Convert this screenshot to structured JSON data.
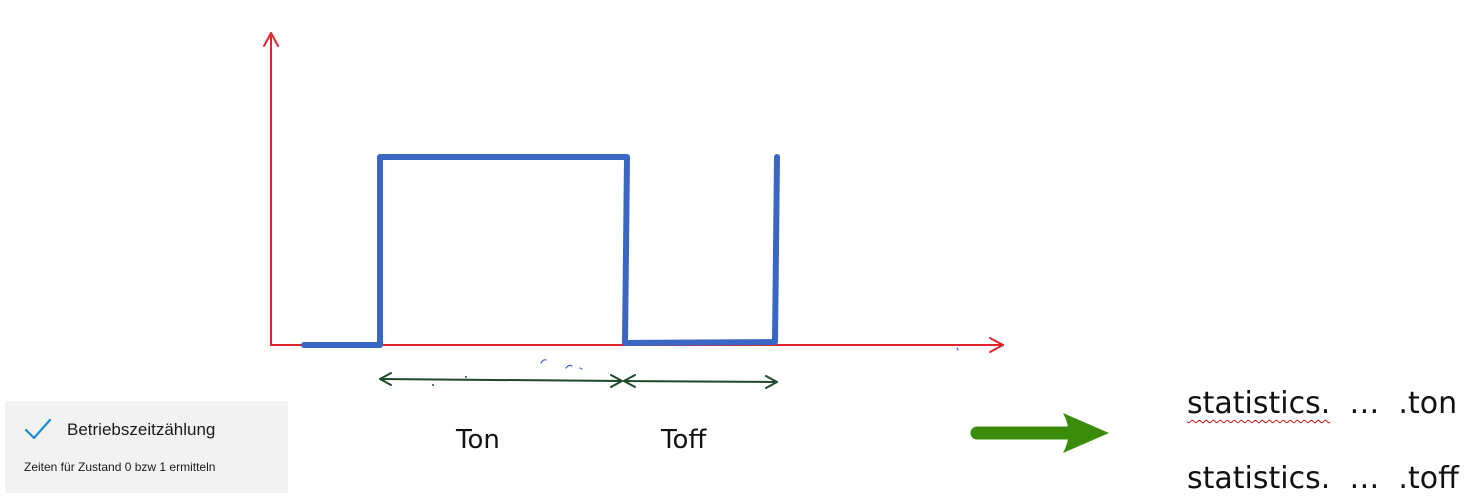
{
  "diagram": {
    "labels": {
      "ton": "Ton",
      "toff": "Toff"
    },
    "colors": {
      "axes": "#e0242b",
      "signal": "#3a66c4",
      "dimension_arrows": "#1f4a2a",
      "result_arrow": "#3c8c0c"
    }
  },
  "results": {
    "ton": {
      "prefix": "statistics.",
      "ellipsis": "…",
      "suffix": ".ton"
    },
    "toff": {
      "prefix": "statistics.",
      "ellipsis": "…",
      "suffix": ".toff"
    }
  },
  "option_panel": {
    "checked": true,
    "check_icon": "checkmark-icon",
    "title": "Betriebszeitzählung",
    "description": "Zeiten für Zustand 0 bzw 1 ermitteln",
    "accent_color": "#1a8ad4"
  }
}
